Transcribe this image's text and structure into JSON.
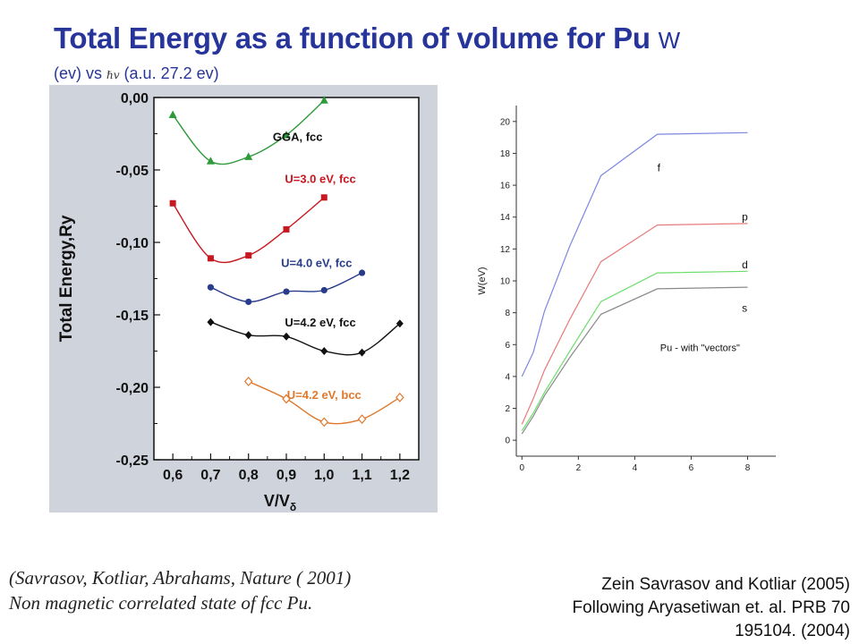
{
  "header": {
    "title": "Total Energy as a function of volume for Pu",
    "title_symbol": "W",
    "subtitle_pre": "(ev) vs",
    "subtitle_symbol": "ℏv",
    "subtitle_post": "(a.u. 27.2 ev)"
  },
  "citations": {
    "left_line1": "(Savrasov, Kotliar, Abrahams,  Nature ( 2001)",
    "left_line2": "Non magnetic correlated state of fcc Pu.",
    "right_line1": "Zein Savrasov and Kotliar (2005)",
    "right_line2": "Following Aryasetiwan et. al. PRB 70",
    "right_line3": "195104.  (2004)"
  },
  "chart_data": [
    {
      "type": "scatter",
      "ylabel": "Total Energy,Ry",
      "xlabel": "V/V",
      "xlabel_sub": "δ",
      "xlim": [
        0.55,
        1.25
      ],
      "ylim": [
        -0.25,
        0.0
      ],
      "x_ticks": [
        0.6,
        0.7,
        0.8,
        0.9,
        1.0,
        1.1,
        1.2
      ],
      "x_tick_labels": [
        "0,6",
        "0,7",
        "0,8",
        "0,9",
        "1,0",
        "1,1",
        "1,2"
      ],
      "y_ticks": [
        0.0,
        -0.05,
        -0.1,
        -0.15,
        -0.2,
        -0.25
      ],
      "y_tick_labels": [
        "0,00",
        "-0,05",
        "-0,10",
        "-0,15",
        "-0,20",
        "-0,25"
      ],
      "background": "#cfd3dc",
      "series": [
        {
          "name": "GGA, fcc",
          "color": "#2e9a3a",
          "marker": "triangle",
          "label_color": "#111111",
          "label_at": [
            0.93,
            -0.027
          ],
          "x": [
            0.6,
            0.7,
            0.8,
            0.9,
            1.0
          ],
          "y": [
            -0.012,
            -0.044,
            -0.041,
            -0.026,
            -0.002
          ]
        },
        {
          "name": "U=3.0 eV, fcc",
          "color": "#c8171e",
          "marker": "square",
          "label_color": "#c8171e",
          "label_at": [
            0.99,
            -0.056
          ],
          "x": [
            0.6,
            0.7,
            0.8,
            0.9,
            1.0
          ],
          "y": [
            -0.073,
            -0.111,
            -0.109,
            -0.091,
            -0.069
          ]
        },
        {
          "name": "U=4.0 eV, fcc",
          "color": "#283c8c",
          "marker": "circle",
          "label_color": "#283c8c",
          "label_at": [
            0.98,
            -0.114
          ],
          "x": [
            0.7,
            0.8,
            0.9,
            1.0,
            1.1
          ],
          "y": [
            -0.131,
            -0.141,
            -0.134,
            -0.133,
            -0.121
          ]
        },
        {
          "name": "U=4.2 eV, fcc",
          "color": "#111111",
          "marker": "diamond",
          "label_color": "#111111",
          "label_at": [
            0.99,
            -0.155
          ],
          "x": [
            0.7,
            0.8,
            0.9,
            1.0,
            1.1,
            1.2
          ],
          "y": [
            -0.155,
            -0.164,
            -0.165,
            -0.175,
            -0.176,
            -0.156
          ]
        },
        {
          "name": "U=4.2 eV, bcc",
          "color": "#e0782b",
          "marker": "diamond-open",
          "label_color": "#e0782b",
          "label_at": [
            1.0,
            -0.205
          ],
          "x": [
            0.8,
            0.9,
            1.0,
            1.1,
            1.2
          ],
          "y": [
            -0.196,
            -0.208,
            -0.224,
            -0.222,
            -0.207
          ]
        }
      ]
    },
    {
      "type": "line",
      "ylabel": "W(eV)",
      "xlim": [
        -0.2,
        9.0
      ],
      "ylim": [
        -1.0,
        21.0
      ],
      "x_ticks": [
        0,
        2,
        4,
        6,
        8
      ],
      "y_ticks": [
        0,
        2,
        4,
        6,
        8,
        10,
        12,
        14,
        16,
        18,
        20
      ],
      "annotation": "Pu - with \"vectors\"",
      "series": [
        {
          "name": "f",
          "color": "#7b86e0",
          "label_at": [
            4.8,
            17.1
          ],
          "x": [
            0.0,
            0.4,
            0.8,
            1.7,
            2.8,
            4.8,
            8.0
          ],
          "y": [
            4.0,
            5.5,
            8.1,
            12.2,
            16.6,
            19.2,
            19.3
          ]
        },
        {
          "name": "p",
          "color": "#e87b7b",
          "label_at": [
            7.8,
            14.0
          ],
          "x": [
            0.0,
            0.4,
            0.8,
            1.7,
            2.8,
            4.8,
            8.0
          ],
          "y": [
            1.0,
            2.6,
            4.4,
            7.6,
            11.2,
            13.5,
            13.6
          ]
        },
        {
          "name": "d",
          "color": "#6cde6c",
          "label_at": [
            7.8,
            11.0
          ],
          "x": [
            0.0,
            0.4,
            0.8,
            1.7,
            2.8,
            4.8,
            8.0
          ],
          "y": [
            0.6,
            1.7,
            3.0,
            5.6,
            8.7,
            10.5,
            10.6
          ]
        },
        {
          "name": "s",
          "color": "#8a8a8a",
          "label_at": [
            7.8,
            8.3
          ],
          "x": [
            0.0,
            0.4,
            0.8,
            1.7,
            2.8,
            4.8,
            8.0
          ],
          "y": [
            0.4,
            1.5,
            2.8,
            5.2,
            7.9,
            9.5,
            9.6
          ]
        }
      ]
    }
  ]
}
